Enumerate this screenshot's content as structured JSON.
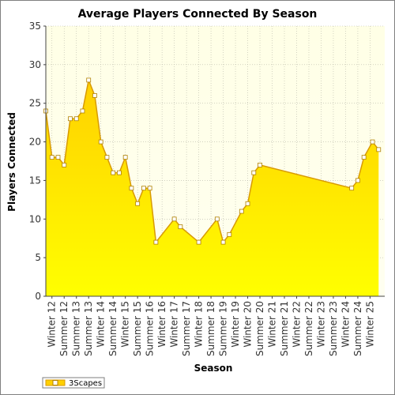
{
  "chart_data": {
    "type": "area",
    "title": "Average Players Connected By Season",
    "xlabel": "Season",
    "ylabel": "Players Connected",
    "ylim": [
      0,
      35
    ],
    "yticks": [
      0,
      5,
      10,
      15,
      20,
      25,
      30,
      35
    ],
    "grid": true,
    "legend_position": "bottom-left",
    "colors": {
      "plot_bg_top": "#ffffe6",
      "plot_bg_bottom": "#fffff0",
      "area_top": "#ffd000",
      "area_bottom": "#ffff00",
      "line": "#d89a00",
      "marker_fill": "#ffffff",
      "marker_stroke": "#b08000",
      "grid": "#b8b8a8"
    },
    "x_range": [
      0,
      27.7
    ],
    "categories": [
      {
        "label": "Winter 12",
        "x": 0.5
      },
      {
        "label": "Summer 12",
        "x": 1.5
      },
      {
        "label": "Summer 13",
        "x": 2.5
      },
      {
        "label": "Summer 13",
        "x": 3.5
      },
      {
        "label": "Winter 14",
        "x": 4.5
      },
      {
        "label": "Summer 14",
        "x": 5.5
      },
      {
        "label": "Winter 15",
        "x": 6.5
      },
      {
        "label": "Summer 15",
        "x": 7.5
      },
      {
        "label": "Summer 16",
        "x": 8.5
      },
      {
        "label": "Winter 16",
        "x": 9.5
      },
      {
        "label": "Winter 17",
        "x": 10.5
      },
      {
        "label": "Summer 17",
        "x": 11.5
      },
      {
        "label": "Winter 18",
        "x": 12.5
      },
      {
        "label": "Summer 18",
        "x": 13.5
      },
      {
        "label": "Summer 19",
        "x": 14.5
      },
      {
        "label": "Winter 19",
        "x": 15.5
      },
      {
        "label": "Winter 20",
        "x": 16.5
      },
      {
        "label": "Summer 20",
        "x": 17.5
      },
      {
        "label": "Winter 21",
        "x": 18.5
      },
      {
        "label": "Summer 21",
        "x": 19.5
      },
      {
        "label": "Winter 22",
        "x": 20.5
      },
      {
        "label": "Summer 22",
        "x": 21.5
      },
      {
        "label": "Winter 23",
        "x": 22.5
      },
      {
        "label": "Summer 23",
        "x": 23.5
      },
      {
        "label": "Winter 24",
        "x": 24.5
      },
      {
        "label": "Summer 24",
        "x": 25.5
      },
      {
        "label": "Winter 25",
        "x": 26.5
      }
    ],
    "series": [
      {
        "name": "3Scapes",
        "points": [
          [
            0.0,
            24
          ],
          [
            0.5,
            18
          ],
          [
            1.0,
            18
          ],
          [
            1.5,
            17
          ],
          [
            2.0,
            23
          ],
          [
            2.5,
            23
          ],
          [
            3.0,
            24
          ],
          [
            3.5,
            28
          ],
          [
            4.0,
            26
          ],
          [
            4.5,
            20
          ],
          [
            5.0,
            18
          ],
          [
            5.5,
            16
          ],
          [
            6.0,
            16
          ],
          [
            6.5,
            18
          ],
          [
            7.0,
            14
          ],
          [
            7.5,
            12
          ],
          [
            8.0,
            14
          ],
          [
            8.5,
            14
          ],
          [
            9.0,
            7
          ],
          [
            10.5,
            10
          ],
          [
            11.0,
            9
          ],
          [
            12.5,
            7
          ],
          [
            14.0,
            10
          ],
          [
            14.5,
            7
          ],
          [
            15.0,
            8
          ],
          [
            16.0,
            11
          ],
          [
            16.5,
            12
          ],
          [
            17.0,
            16
          ],
          [
            17.5,
            17
          ],
          [
            25.0,
            14
          ],
          [
            25.5,
            15
          ],
          [
            26.0,
            18
          ],
          [
            26.7,
            20
          ],
          [
            27.2,
            19
          ]
        ]
      }
    ]
  }
}
